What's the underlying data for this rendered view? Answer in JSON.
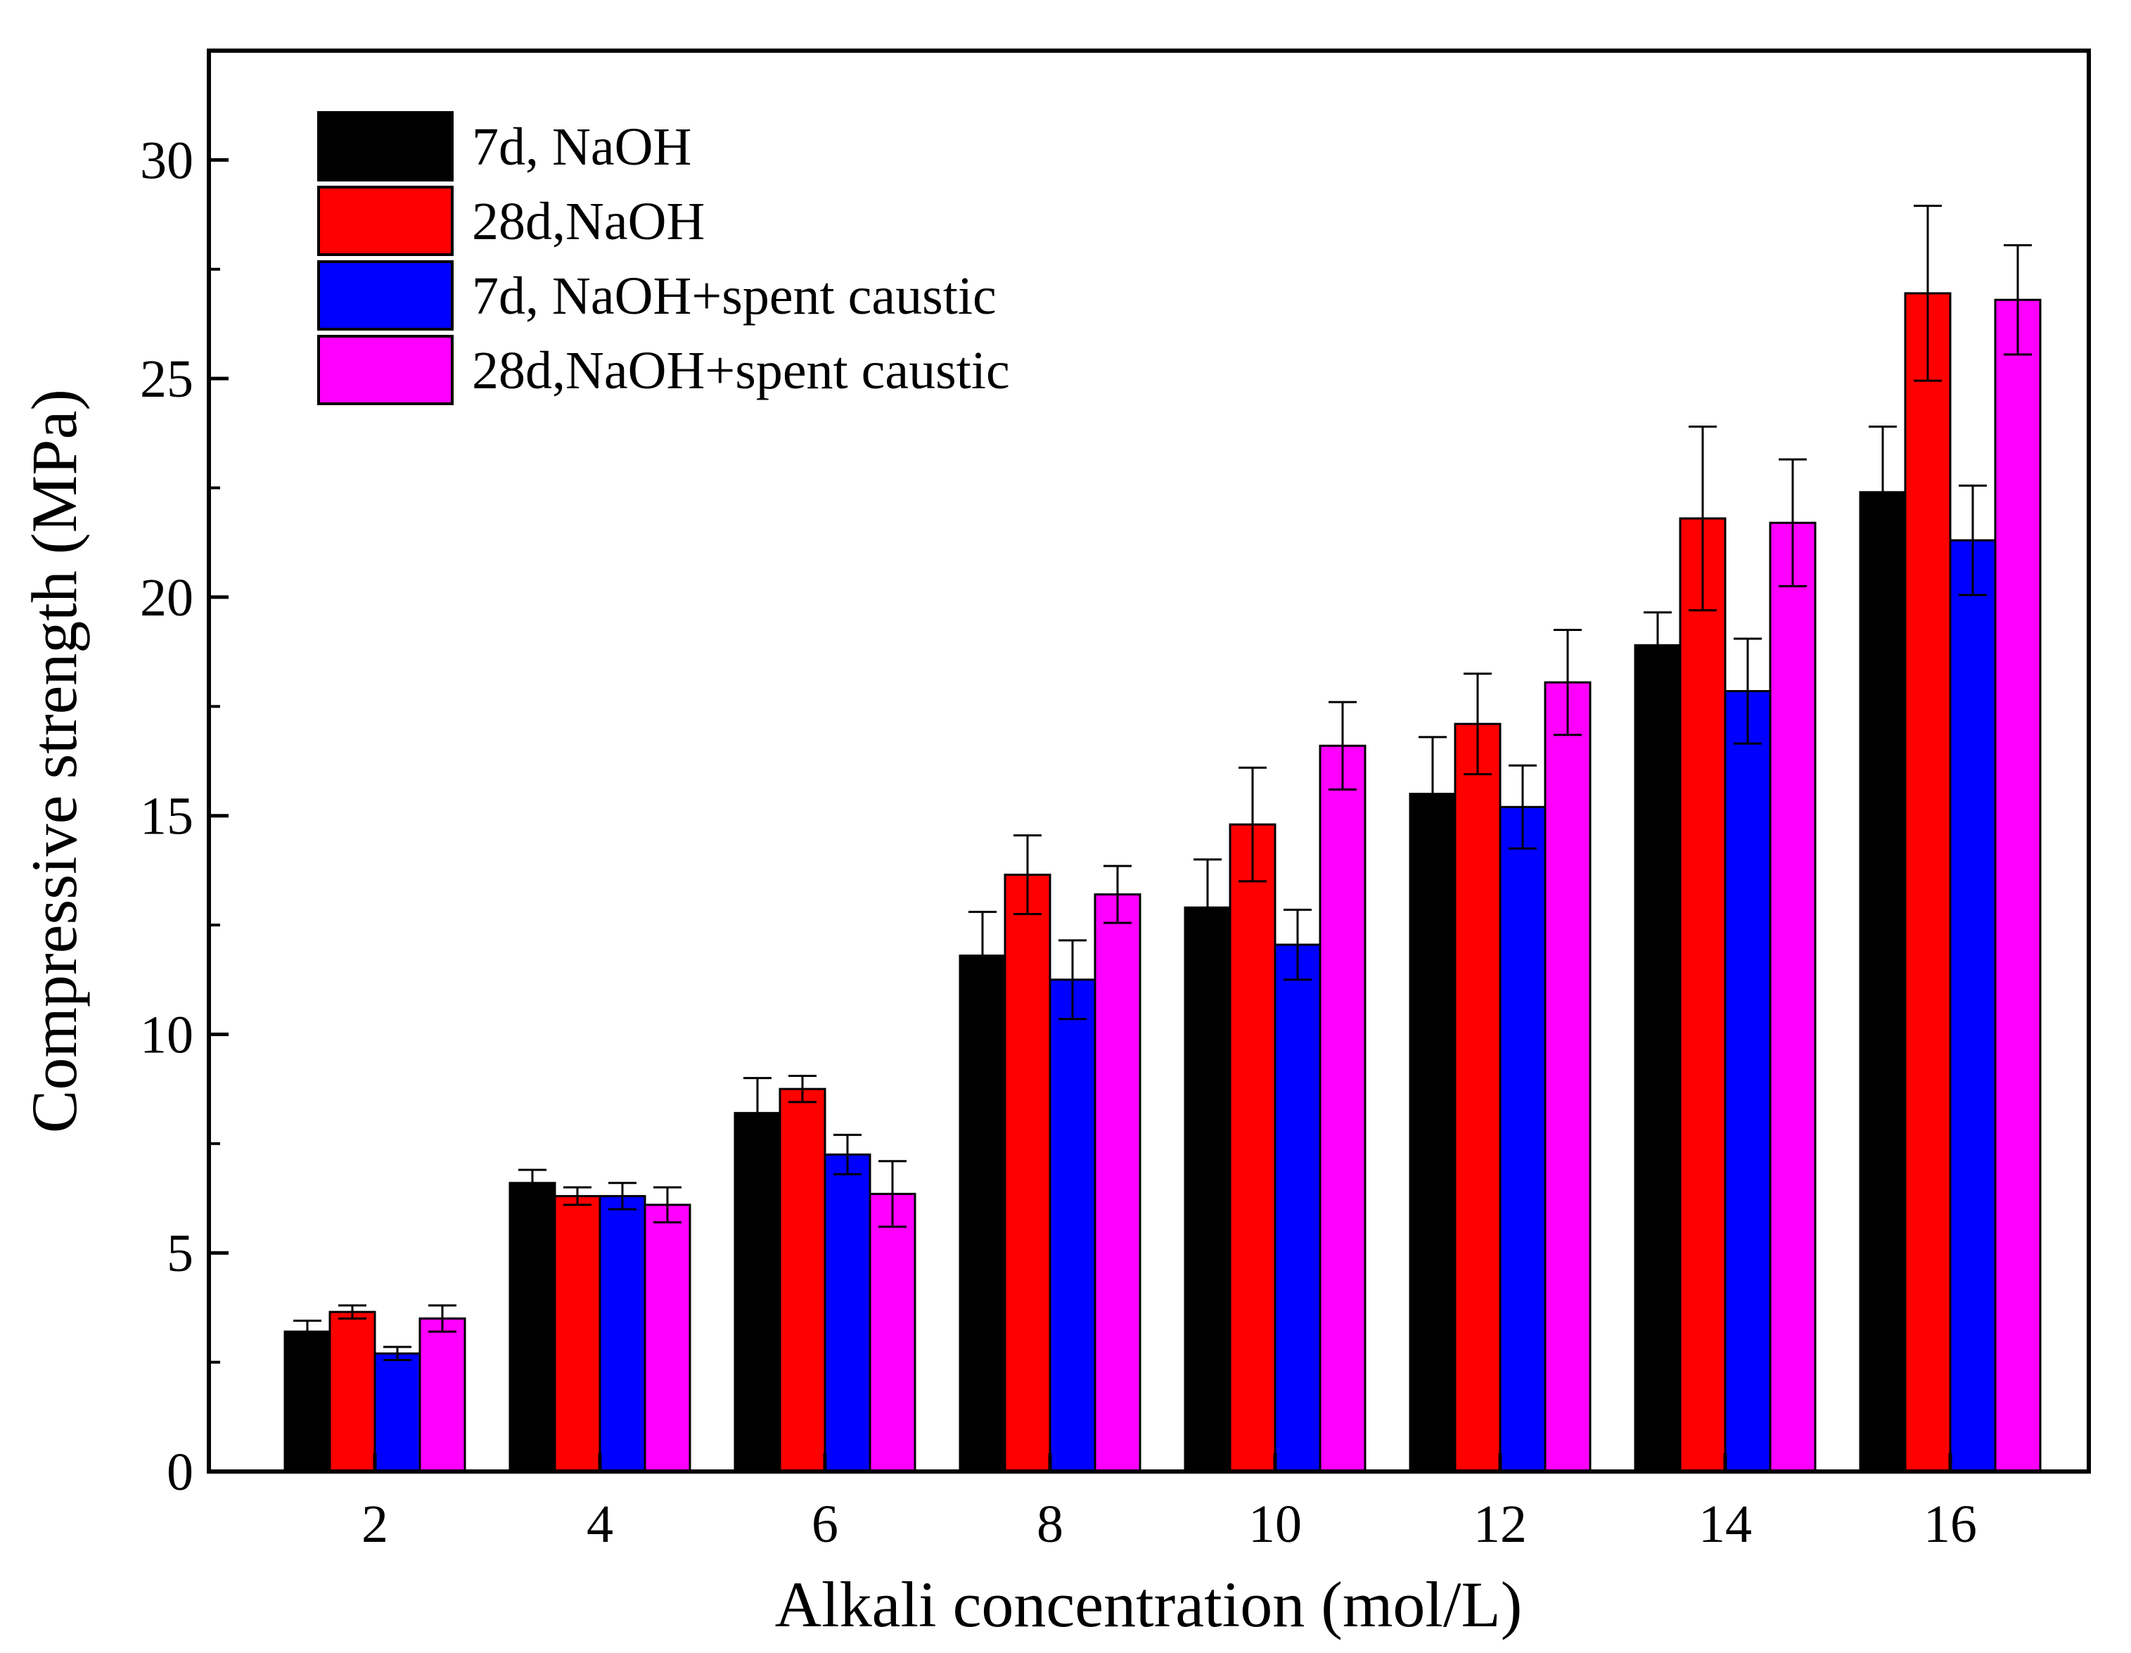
{
  "chart_data": {
    "type": "bar",
    "xlabel": "Alkali concentration (mol/L)",
    "ylabel": "Compressive strength (MPa)",
    "ylim": [
      0,
      32.5
    ],
    "yticks": [
      0,
      5,
      10,
      15,
      20,
      25,
      30
    ],
    "categories": [
      "2",
      "4",
      "6",
      "8",
      "10",
      "12",
      "14",
      "16"
    ],
    "legend_position": "top-left",
    "grid": false,
    "series": [
      {
        "name": "7d, NaOH",
        "color": "#000000",
        "values": [
          3.2,
          6.6,
          8.2,
          11.8,
          12.9,
          15.5,
          18.9,
          22.4
        ],
        "errors": [
          0.25,
          0.3,
          0.8,
          1.0,
          1.1,
          1.3,
          0.75,
          1.5
        ]
      },
      {
        "name": "28d,NaOH",
        "color": "#ff0000",
        "values": [
          3.65,
          6.3,
          8.75,
          13.65,
          14.8,
          17.1,
          21.8,
          26.95
        ],
        "errors": [
          0.15,
          0.2,
          0.3,
          0.9,
          1.3,
          1.15,
          2.1,
          2.0
        ]
      },
      {
        "name": "7d, NaOH+spent caustic",
        "color": "#0000ff",
        "values": [
          2.7,
          6.3,
          7.25,
          11.25,
          12.05,
          15.2,
          17.85,
          21.3
        ],
        "errors": [
          0.15,
          0.3,
          0.45,
          0.9,
          0.8,
          0.95,
          1.2,
          1.25
        ]
      },
      {
        "name": "28d,NaOH+spent caustic",
        "color": "#ff00ff",
        "values": [
          3.5,
          6.1,
          6.35,
          13.2,
          16.6,
          18.05,
          21.7,
          26.8
        ],
        "errors": [
          0.3,
          0.4,
          0.75,
          0.65,
          1.0,
          1.2,
          1.45,
          1.25
        ]
      }
    ]
  }
}
